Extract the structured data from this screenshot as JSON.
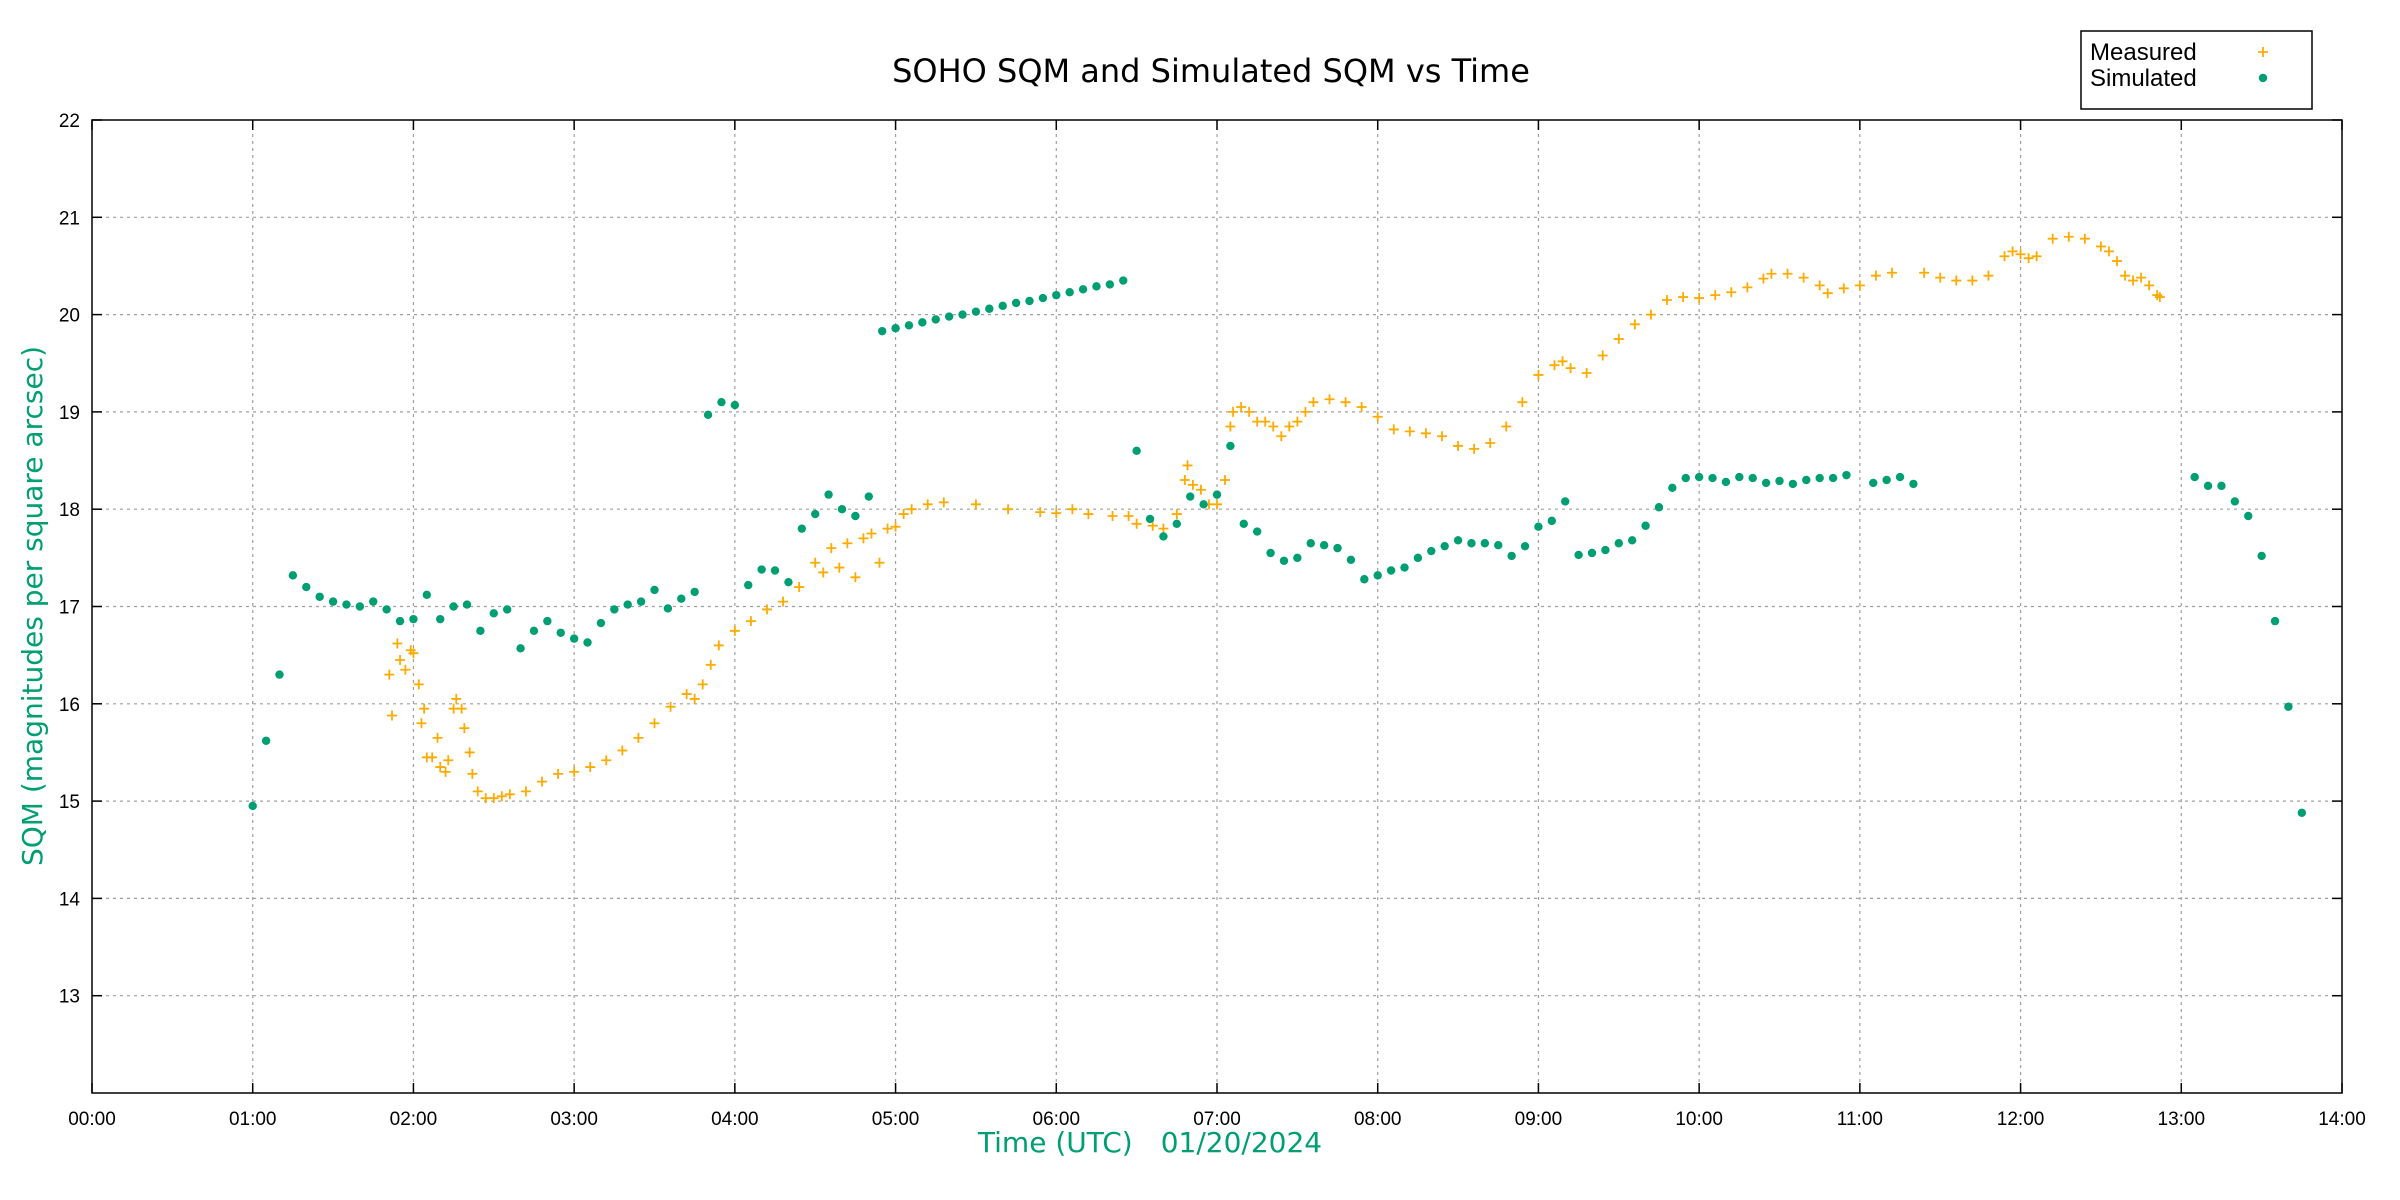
{
  "chart_data": {
    "type": "scatter",
    "title": "SOHO SQM and Simulated SQM vs Time",
    "xlabel": "Time (UTC)",
    "xlabel_date": "01/20/2024",
    "ylabel": "SQM (magnitudes per square arcsec)",
    "xlim": [
      "00:00",
      "14:00"
    ],
    "ylim": [
      12,
      22
    ],
    "x_ticks": [
      "00:00",
      "01:00",
      "02:00",
      "03:00",
      "04:00",
      "05:00",
      "06:00",
      "07:00",
      "08:00",
      "09:00",
      "10:00",
      "11:00",
      "12:00",
      "13:00",
      "14:00"
    ],
    "y_ticks": [
      "13",
      "14",
      "15",
      "16",
      "17",
      "18",
      "19",
      "20",
      "21",
      "22"
    ],
    "grid": true,
    "legend_position": "top-right",
    "series": [
      {
        "name": "Measured",
        "marker": "plus",
        "color": "#ffaa00",
        "points": [
          [
            "01:51",
            16.3
          ],
          [
            "01:52",
            15.88
          ],
          [
            "01:54",
            16.62
          ],
          [
            "01:55",
            16.45
          ],
          [
            "01:57",
            16.35
          ],
          [
            "01:59",
            16.55
          ],
          [
            "02:00",
            16.52
          ],
          [
            "02:02",
            16.2
          ],
          [
            "02:03",
            15.8
          ],
          [
            "02:04",
            15.95
          ],
          [
            "02:05",
            15.45
          ],
          [
            "02:07",
            15.45
          ],
          [
            "02:09",
            15.65
          ],
          [
            "02:10",
            15.35
          ],
          [
            "02:12",
            15.3
          ],
          [
            "02:13",
            15.42
          ],
          [
            "02:15",
            15.95
          ],
          [
            "02:16",
            16.05
          ],
          [
            "02:18",
            15.95
          ],
          [
            "02:19",
            15.75
          ],
          [
            "02:21",
            15.5
          ],
          [
            "02:22",
            15.28
          ],
          [
            "02:24",
            15.1
          ],
          [
            "02:27",
            15.03
          ],
          [
            "02:30",
            15.03
          ],
          [
            "02:33",
            15.05
          ],
          [
            "02:36",
            15.07
          ],
          [
            "02:42",
            15.1
          ],
          [
            "02:48",
            15.2
          ],
          [
            "02:54",
            15.28
          ],
          [
            "03:00",
            15.3
          ],
          [
            "03:06",
            15.35
          ],
          [
            "03:12",
            15.42
          ],
          [
            "03:18",
            15.52
          ],
          [
            "03:24",
            15.65
          ],
          [
            "03:30",
            15.8
          ],
          [
            "03:36",
            15.97
          ],
          [
            "03:42",
            16.1
          ],
          [
            "03:45",
            16.05
          ],
          [
            "03:48",
            16.2
          ],
          [
            "03:51",
            16.4
          ],
          [
            "03:54",
            16.6
          ],
          [
            "04:00",
            16.75
          ],
          [
            "04:06",
            16.85
          ],
          [
            "04:12",
            16.97
          ],
          [
            "04:18",
            17.05
          ],
          [
            "04:24",
            17.2
          ],
          [
            "04:30",
            17.45
          ],
          [
            "04:33",
            17.35
          ],
          [
            "04:36",
            17.6
          ],
          [
            "04:39",
            17.4
          ],
          [
            "04:42",
            17.65
          ],
          [
            "04:45",
            17.3
          ],
          [
            "04:48",
            17.7
          ],
          [
            "04:51",
            17.75
          ],
          [
            "04:54",
            17.45
          ],
          [
            "04:57",
            17.8
          ],
          [
            "05:00",
            17.82
          ],
          [
            "05:03",
            17.95
          ],
          [
            "05:06",
            18.0
          ],
          [
            "05:12",
            18.05
          ],
          [
            "05:18",
            18.07
          ],
          [
            "05:30",
            18.05
          ],
          [
            "05:42",
            18.0
          ],
          [
            "05:54",
            17.97
          ],
          [
            "06:00",
            17.96
          ],
          [
            "06:06",
            18.0
          ],
          [
            "06:12",
            17.95
          ],
          [
            "06:21",
            17.93
          ],
          [
            "06:27",
            17.93
          ],
          [
            "06:30",
            17.85
          ],
          [
            "06:36",
            17.83
          ],
          [
            "06:40",
            17.8
          ],
          [
            "06:45",
            17.95
          ],
          [
            "06:48",
            18.3
          ],
          [
            "06:49",
            18.45
          ],
          [
            "06:51",
            18.25
          ],
          [
            "06:54",
            18.2
          ],
          [
            "06:57",
            18.05
          ],
          [
            "07:00",
            18.05
          ],
          [
            "07:03",
            18.3
          ],
          [
            "07:05",
            18.85
          ],
          [
            "07:06",
            19.0
          ],
          [
            "07:09",
            19.05
          ],
          [
            "07:12",
            19.0
          ],
          [
            "07:15",
            18.9
          ],
          [
            "07:18",
            18.9
          ],
          [
            "07:21",
            18.85
          ],
          [
            "07:24",
            18.75
          ],
          [
            "07:27",
            18.85
          ],
          [
            "07:30",
            18.9
          ],
          [
            "07:33",
            19.0
          ],
          [
            "07:36",
            19.1
          ],
          [
            "07:42",
            19.13
          ],
          [
            "07:48",
            19.1
          ],
          [
            "07:54",
            19.05
          ],
          [
            "08:00",
            18.95
          ],
          [
            "08:06",
            18.82
          ],
          [
            "08:12",
            18.8
          ],
          [
            "08:18",
            18.78
          ],
          [
            "08:24",
            18.75
          ],
          [
            "08:30",
            18.65
          ],
          [
            "08:36",
            18.62
          ],
          [
            "08:42",
            18.68
          ],
          [
            "08:48",
            18.85
          ],
          [
            "08:54",
            19.1
          ],
          [
            "09:00",
            19.38
          ],
          [
            "09:06",
            19.48
          ],
          [
            "09:09",
            19.52
          ],
          [
            "09:12",
            19.45
          ],
          [
            "09:18",
            19.4
          ],
          [
            "09:24",
            19.58
          ],
          [
            "09:30",
            19.75
          ],
          [
            "09:36",
            19.9
          ],
          [
            "09:42",
            20.0
          ],
          [
            "09:48",
            20.15
          ],
          [
            "09:54",
            20.18
          ],
          [
            "10:00",
            20.17
          ],
          [
            "10:06",
            20.2
          ],
          [
            "10:12",
            20.23
          ],
          [
            "10:18",
            20.28
          ],
          [
            "10:24",
            20.37
          ],
          [
            "10:27",
            20.42
          ],
          [
            "10:33",
            20.42
          ],
          [
            "10:39",
            20.38
          ],
          [
            "10:45",
            20.3
          ],
          [
            "10:48",
            20.22
          ],
          [
            "10:54",
            20.27
          ],
          [
            "11:00",
            20.3
          ],
          [
            "11:06",
            20.4
          ],
          [
            "11:12",
            20.43
          ],
          [
            "11:24",
            20.43
          ],
          [
            "11:30",
            20.38
          ],
          [
            "11:36",
            20.35
          ],
          [
            "11:42",
            20.35
          ],
          [
            "11:48",
            20.4
          ],
          [
            "11:54",
            20.6
          ],
          [
            "11:57",
            20.65
          ],
          [
            "12:00",
            20.62
          ],
          [
            "12:03",
            20.58
          ],
          [
            "12:06",
            20.6
          ],
          [
            "12:12",
            20.78
          ],
          [
            "12:18",
            20.8
          ],
          [
            "12:24",
            20.78
          ],
          [
            "12:30",
            20.7
          ],
          [
            "12:33",
            20.65
          ],
          [
            "12:36",
            20.55
          ],
          [
            "12:39",
            20.4
          ],
          [
            "12:42",
            20.35
          ],
          [
            "12:45",
            20.38
          ],
          [
            "12:48",
            20.3
          ],
          [
            "12:51",
            20.2
          ],
          [
            "12:52",
            20.18
          ]
        ]
      },
      {
        "name": "Simulated",
        "marker": "dot",
        "color": "#009e73",
        "points": [
          [
            "01:00",
            14.95
          ],
          [
            "01:05",
            15.62
          ],
          [
            "01:10",
            16.3
          ],
          [
            "01:15",
            17.32
          ],
          [
            "01:20",
            17.2
          ],
          [
            "01:25",
            17.1
          ],
          [
            "01:30",
            17.05
          ],
          [
            "01:35",
            17.02
          ],
          [
            "01:40",
            17.0
          ],
          [
            "01:45",
            17.05
          ],
          [
            "01:50",
            16.97
          ],
          [
            "01:55",
            16.85
          ],
          [
            "02:00",
            16.87
          ],
          [
            "02:05",
            17.12
          ],
          [
            "02:10",
            16.87
          ],
          [
            "02:15",
            17.0
          ],
          [
            "02:20",
            17.02
          ],
          [
            "02:25",
            16.75
          ],
          [
            "02:30",
            16.93
          ],
          [
            "02:35",
            16.97
          ],
          [
            "02:40",
            16.57
          ],
          [
            "02:45",
            16.75
          ],
          [
            "02:50",
            16.85
          ],
          [
            "02:55",
            16.73
          ],
          [
            "03:00",
            16.67
          ],
          [
            "03:05",
            16.63
          ],
          [
            "03:10",
            16.83
          ],
          [
            "03:15",
            16.97
          ],
          [
            "03:20",
            17.02
          ],
          [
            "03:25",
            17.05
          ],
          [
            "03:30",
            17.17
          ],
          [
            "03:35",
            16.98
          ],
          [
            "03:40",
            17.08
          ],
          [
            "03:45",
            17.15
          ],
          [
            "03:50",
            18.97
          ],
          [
            "03:55",
            19.1
          ],
          [
            "04:00",
            19.07
          ],
          [
            "04:05",
            17.22
          ],
          [
            "04:10",
            17.38
          ],
          [
            "04:15",
            17.37
          ],
          [
            "04:20",
            17.25
          ],
          [
            "04:25",
            17.8
          ],
          [
            "04:30",
            17.95
          ],
          [
            "04:35",
            18.15
          ],
          [
            "04:40",
            18.0
          ],
          [
            "04:45",
            17.93
          ],
          [
            "04:50",
            18.13
          ],
          [
            "04:55",
            19.83
          ],
          [
            "05:00",
            19.86
          ],
          [
            "05:05",
            19.89
          ],
          [
            "05:10",
            19.92
          ],
          [
            "05:15",
            19.95
          ],
          [
            "05:20",
            19.98
          ],
          [
            "05:25",
            20.0
          ],
          [
            "05:30",
            20.03
          ],
          [
            "05:35",
            20.06
          ],
          [
            "05:40",
            20.09
          ],
          [
            "05:45",
            20.12
          ],
          [
            "05:50",
            20.14
          ],
          [
            "05:55",
            20.17
          ],
          [
            "06:00",
            20.2
          ],
          [
            "06:05",
            20.23
          ],
          [
            "06:10",
            20.26
          ],
          [
            "06:15",
            20.29
          ],
          [
            "06:20",
            20.31
          ],
          [
            "06:25",
            20.35
          ],
          [
            "06:30",
            18.6
          ],
          [
            "06:35",
            17.9
          ],
          [
            "06:40",
            17.72
          ],
          [
            "06:45",
            17.85
          ],
          [
            "06:50",
            18.13
          ],
          [
            "06:55",
            18.05
          ],
          [
            "07:00",
            18.15
          ],
          [
            "07:05",
            18.65
          ],
          [
            "07:10",
            17.85
          ],
          [
            "07:15",
            17.77
          ],
          [
            "07:20",
            17.55
          ],
          [
            "07:25",
            17.47
          ],
          [
            "07:30",
            17.5
          ],
          [
            "07:35",
            17.65
          ],
          [
            "07:40",
            17.63
          ],
          [
            "07:45",
            17.6
          ],
          [
            "07:50",
            17.48
          ],
          [
            "07:55",
            17.28
          ],
          [
            "08:00",
            17.32
          ],
          [
            "08:05",
            17.37
          ],
          [
            "08:10",
            17.4
          ],
          [
            "08:15",
            17.5
          ],
          [
            "08:20",
            17.57
          ],
          [
            "08:25",
            17.62
          ],
          [
            "08:30",
            17.68
          ],
          [
            "08:35",
            17.65
          ],
          [
            "08:40",
            17.65
          ],
          [
            "08:45",
            17.63
          ],
          [
            "08:50",
            17.52
          ],
          [
            "08:55",
            17.62
          ],
          [
            "09:00",
            17.82
          ],
          [
            "09:05",
            17.88
          ],
          [
            "09:10",
            18.08
          ],
          [
            "09:15",
            17.53
          ],
          [
            "09:20",
            17.55
          ],
          [
            "09:25",
            17.58
          ],
          [
            "09:30",
            17.65
          ],
          [
            "09:35",
            17.68
          ],
          [
            "09:40",
            17.83
          ],
          [
            "09:45",
            18.02
          ],
          [
            "09:50",
            18.22
          ],
          [
            "09:55",
            18.32
          ],
          [
            "10:00",
            18.33
          ],
          [
            "10:05",
            18.32
          ],
          [
            "10:10",
            18.28
          ],
          [
            "10:15",
            18.33
          ],
          [
            "10:20",
            18.32
          ],
          [
            "10:25",
            18.27
          ],
          [
            "10:30",
            18.29
          ],
          [
            "10:35",
            18.26
          ],
          [
            "10:40",
            18.3
          ],
          [
            "10:45",
            18.32
          ],
          [
            "10:50",
            18.32
          ],
          [
            "10:55",
            18.35
          ],
          [
            "11:05",
            18.27
          ],
          [
            "11:10",
            18.3
          ],
          [
            "11:15",
            18.33
          ],
          [
            "11:20",
            18.26
          ],
          [
            "13:05",
            18.33
          ],
          [
            "13:10",
            18.24
          ],
          [
            "13:15",
            18.24
          ],
          [
            "13:20",
            18.08
          ],
          [
            "13:25",
            17.93
          ],
          [
            "13:30",
            17.52
          ],
          [
            "13:35",
            16.85
          ],
          [
            "13:40",
            15.97
          ],
          [
            "13:45",
            14.88
          ]
        ]
      }
    ]
  }
}
